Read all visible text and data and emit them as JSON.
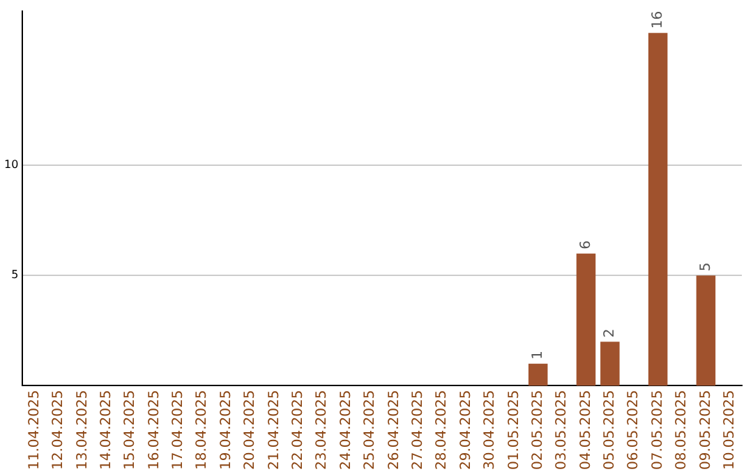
{
  "chart_data": {
    "type": "bar",
    "categories": [
      "11.04.2025",
      "12.04.2025",
      "13.04.2025",
      "14.04.2025",
      "15.04.2025",
      "16.04.2025",
      "17.04.2025",
      "18.04.2025",
      "19.04.2025",
      "20.04.2025",
      "21.04.2025",
      "22.04.2025",
      "23.04.2025",
      "24.04.2025",
      "25.04.2025",
      "26.04.2025",
      "27.04.2025",
      "28.04.2025",
      "29.04.2025",
      "30.04.2025",
      "01.05.2025",
      "02.05.2025",
      "03.05.2025",
      "04.05.2025",
      "05.05.2025",
      "06.05.2025",
      "07.05.2025",
      "08.05.2025",
      "09.05.2025",
      "10.05.2025"
    ],
    "values": [
      null,
      null,
      null,
      null,
      null,
      null,
      null,
      null,
      null,
      null,
      null,
      null,
      null,
      null,
      null,
      null,
      null,
      null,
      null,
      null,
      null,
      1,
      null,
      6,
      2,
      null,
      16,
      null,
      5,
      null
    ],
    "color": "#a0522d",
    "ylim": [
      0,
      17
    ],
    "yticks": [
      5,
      10
    ],
    "grid": "y",
    "data_labels": true,
    "legend": false
  }
}
